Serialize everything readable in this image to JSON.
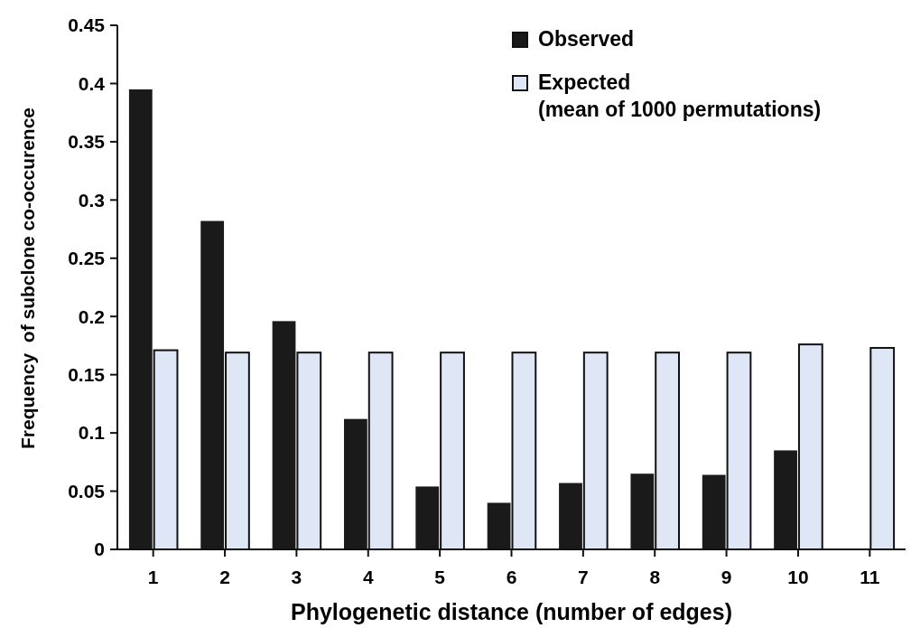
{
  "chart_data": {
    "type": "bar",
    "xlabel": "Phylogenetic distance (number of edges)",
    "ylabel": "Frequency  of subclone co-occurence",
    "categories": [
      "1",
      "2",
      "3",
      "4",
      "5",
      "6",
      "7",
      "8",
      "9",
      "10",
      "11"
    ],
    "series": [
      {
        "name": "Observed",
        "color": "#1a1a1a",
        "values": [
          0.395,
          0.282,
          0.196,
          0.112,
          0.054,
          0.04,
          0.057,
          0.065,
          0.064,
          0.085,
          0
        ]
      },
      {
        "name": "Expected\n(mean of 1000 permutations)",
        "color": "#dfe6f6",
        "values": [
          0.171,
          0.169,
          0.169,
          0.169,
          0.169,
          0.169,
          0.169,
          0.169,
          0.169,
          0.176,
          0.173
        ]
      }
    ],
    "ylim": [
      0,
      0.45
    ],
    "yticks": [
      0,
      0.05,
      0.1,
      0.15,
      0.2,
      0.25,
      0.3,
      0.35,
      0.4,
      0.45
    ],
    "legend": "top right"
  }
}
